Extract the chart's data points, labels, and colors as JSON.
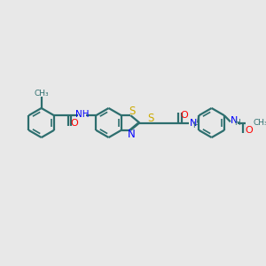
{
  "background_color": "#e8e8e8",
  "bond_color": "#2d6e6e",
  "nitrogen_color": "#0000ff",
  "oxygen_color": "#ff0000",
  "sulfur_color": "#ccaa00",
  "carbon_color": "#2d6e6e",
  "figsize": [
    3.0,
    3.0
  ],
  "dpi": 100,
  "xlim": [
    0,
    12
  ],
  "ylim": [
    0,
    10
  ]
}
